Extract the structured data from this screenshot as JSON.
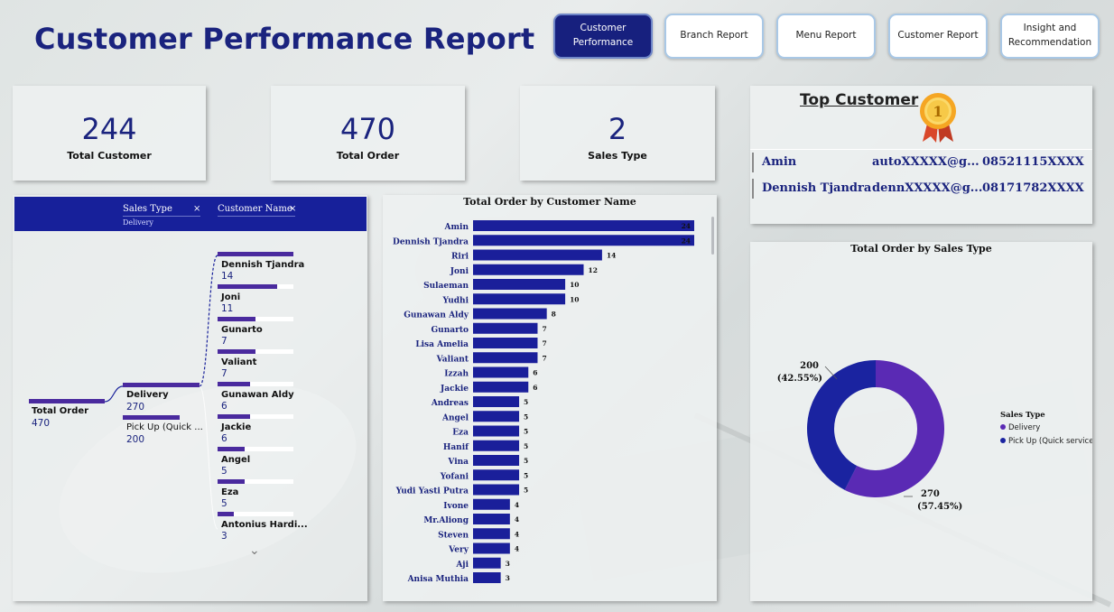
{
  "page": {
    "title": "Customer Performance Report"
  },
  "nav": [
    {
      "label_line1": "Customer",
      "label_line2": "Performance",
      "active": true
    },
    {
      "label_line1": "Branch Report",
      "label_line2": "",
      "active": false
    },
    {
      "label_line1": "Menu Report",
      "label_line2": "",
      "active": false
    },
    {
      "label_line1": "Customer Report",
      "label_line2": "",
      "active": false
    },
    {
      "label_line1": "Insight and",
      "label_line2": "Recommendation",
      "active": false
    }
  ],
  "kpis": {
    "customers": {
      "value": "244",
      "label": "Total Customer"
    },
    "orders": {
      "value": "470",
      "label": "Total Order"
    },
    "sales_types": {
      "value": "2",
      "label": "Sales Type"
    }
  },
  "top_customer": {
    "title": "Top Customer",
    "badge": "1",
    "rows": [
      {
        "name": "Amin",
        "email": "autoXXXXX@g...",
        "phone": "08521115XXXX"
      },
      {
        "name": "Dennish Tjandra",
        "email": "dennXXXXX@g...",
        "phone": "08171782XXXX"
      }
    ]
  },
  "decomp_tree": {
    "slicer1": "Sales Type",
    "slicer1_value": "Delivery",
    "slicer2": "Customer Name",
    "close_glyph": "×",
    "root": {
      "label": "Total Order",
      "value": "470"
    },
    "level1": [
      {
        "label": "Delivery",
        "value": "270"
      },
      {
        "label": "Pick Up (Quick ...",
        "value": "200"
      }
    ],
    "level2": [
      {
        "label": "Dennish Tjandra",
        "value": "14"
      },
      {
        "label": "Joni",
        "value": "11"
      },
      {
        "label": "Gunarto",
        "value": "7"
      },
      {
        "label": "Valiant",
        "value": "7"
      },
      {
        "label": "Gunawan Aldy",
        "value": "6"
      },
      {
        "label": "Jackie",
        "value": "6"
      },
      {
        "label": "Angel",
        "value": "5"
      },
      {
        "label": "Eza",
        "value": "5"
      },
      {
        "label": "Antonius Hardi...",
        "value": "3"
      }
    ],
    "more_glyph": "⌄"
  },
  "chart_data": [
    {
      "type": "bar",
      "orientation": "horizontal",
      "title": "Total Order by Customer Name",
      "categories": [
        "Amin",
        "Dennish Tjandra",
        "Riri",
        "Joni",
        "Sulaeman",
        "Yudhi",
        "Gunawan Aldy",
        "Gunarto",
        "Lisa Amelia",
        "Valiant",
        "Izzah",
        "Jackie",
        "Andreas",
        "Angel",
        "Eza",
        "Hanif",
        "Vina",
        "Yofani",
        "Yudi Yasti Putra",
        "Ivone",
        "Mr.Aliong",
        "Steven",
        "Very",
        "Aji",
        "Anisa Muthia"
      ],
      "values": [
        24,
        24,
        14,
        12,
        10,
        10,
        8,
        7,
        7,
        7,
        6,
        6,
        5,
        5,
        5,
        5,
        5,
        5,
        5,
        4,
        4,
        4,
        4,
        3,
        3
      ],
      "xlim": [
        0,
        24
      ],
      "color": "#1a1f9a"
    },
    {
      "type": "pie",
      "variant": "donut",
      "title": "Total Order by Sales Type",
      "legend_title": "Sales Type",
      "legend_position": "right",
      "slices": [
        {
          "name": "Delivery",
          "value": 270,
          "label": "270",
          "pct": "(57.45%)",
          "color": "#5a2ab4"
        },
        {
          "name": "Pick Up (Quick service)",
          "value": 200,
          "label": "200",
          "pct": "(42.55%)",
          "color": "#1a23a0"
        }
      ]
    }
  ]
}
